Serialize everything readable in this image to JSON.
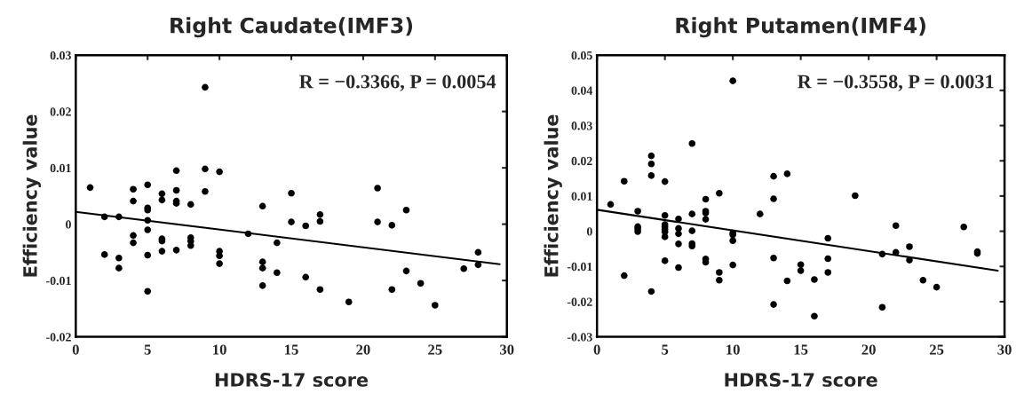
{
  "chart_data": [
    {
      "type": "scatter",
      "title": "Right Caudate(IMF3)",
      "xlabel": "HDRS-17 score",
      "ylabel": "Efficiency value",
      "annotations": [
        "R = −0.3366, P = 0.0054"
      ],
      "xlim": [
        0,
        30
      ],
      "xticks": [
        0,
        5,
        10,
        15,
        20,
        25,
        30
      ],
      "ylim": [
        -0.02,
        0.03
      ],
      "yticks": [
        -0.02,
        -0.01,
        0,
        0.01,
        0.02,
        0.03
      ],
      "grid": false,
      "legend": false,
      "marker": "circle",
      "series": [
        {
          "color": "#000000",
          "x": [
            1,
            2,
            2,
            3,
            3,
            3,
            4,
            4,
            4,
            4,
            5,
            5,
            5,
            5,
            5,
            5,
            5,
            6,
            6,
            6,
            6,
            6,
            7,
            7,
            7,
            7,
            7,
            8,
            8,
            8,
            8,
            9,
            9,
            9,
            10,
            10,
            10,
            10,
            12,
            13,
            13,
            13,
            13,
            14,
            14,
            15,
            15,
            16,
            16,
            17,
            17,
            17,
            19,
            21,
            21,
            22,
            22,
            23,
            23,
            24,
            25,
            27,
            28,
            28
          ],
          "values": [
            0.0065,
            0.0013,
            -0.0054,
            0.0013,
            -0.006,
            -0.0078,
            0.0062,
            0.0041,
            -0.002,
            -0.0033,
            0.007,
            0.0029,
            0.0025,
            0.0007,
            -0.001,
            -0.0055,
            -0.0119,
            0.0054,
            0.0043,
            -0.0026,
            -0.003,
            -0.0048,
            0.0095,
            0.006,
            0.0041,
            0.0037,
            -0.0046,
            0.0035,
            -0.0024,
            -0.003,
            -0.0038,
            0.0243,
            0.0098,
            0.0058,
            0.0093,
            -0.0048,
            -0.0056,
            -0.007,
            -0.0017,
            0.0032,
            -0.0067,
            -0.0078,
            -0.0109,
            -0.0033,
            -0.0086,
            0.0055,
            0.0004,
            -0.0003,
            -0.0094,
            0.0017,
            0.0005,
            -0.0116,
            -0.0138,
            0.0064,
            0.0004,
            -0.0002,
            -0.0116,
            0.0025,
            -0.0083,
            -0.0105,
            -0.0144,
            -0.0079,
            -0.005,
            -0.0072
          ]
        },
        {
          "type": "line",
          "color": "#000000",
          "marker": "none",
          "x": [
            0,
            29.5
          ],
          "values": [
            0.0022,
            -0.0071
          ]
        }
      ]
    },
    {
      "type": "scatter",
      "title": "Right Putamen(IMF4)",
      "xlabel": "HDRS-17 score",
      "ylabel": "Efficiency value",
      "annotations": [
        "R = −0.3558, P = 0.0031"
      ],
      "xlim": [
        0,
        30
      ],
      "xticks": [
        0,
        5,
        10,
        15,
        20,
        25,
        30
      ],
      "ylim": [
        -0.03,
        0.05
      ],
      "yticks": [
        -0.03,
        -0.02,
        -0.01,
        0,
        0.01,
        0.02,
        0.03,
        0.04,
        0.05
      ],
      "grid": false,
      "legend": false,
      "marker": "circle",
      "series": [
        {
          "color": "#000000",
          "x": [
            1,
            2,
            2,
            3,
            3,
            3,
            3,
            4,
            4,
            4,
            4,
            5,
            5,
            5,
            5,
            5,
            5,
            5,
            5,
            6,
            6,
            6,
            6,
            6,
            7,
            7,
            7,
            7,
            7,
            8,
            8,
            8,
            8,
            8,
            8,
            9,
            9,
            9,
            10,
            10,
            10,
            10,
            10,
            12,
            13,
            13,
            13,
            13,
            14,
            14,
            15,
            15,
            16,
            16,
            17,
            17,
            17,
            19,
            21,
            21,
            22,
            22,
            23,
            23,
            24,
            25,
            27,
            28,
            28
          ],
          "values": [
            0.0076,
            0.0142,
            -0.0126,
            0.0057,
            0.0013,
            0.0007,
            -0.0001,
            0.0214,
            0.0191,
            0.0158,
            -0.0171,
            0.0141,
            0.0045,
            0.0019,
            0.0012,
            0.0005,
            -0.0002,
            -0.0016,
            -0.0084,
            0.0035,
            0.0008,
            -0.0007,
            -0.0036,
            -0.0103,
            0.0249,
            0.0049,
            0.0001,
            -0.0035,
            -0.0042,
            0.0091,
            0.0057,
            0.0052,
            0.0034,
            -0.0079,
            -0.0088,
            0.0108,
            -0.0117,
            -0.0139,
            0.0427,
            -0.0005,
            -0.001,
            -0.0027,
            -0.0096,
            0.0049,
            0.0156,
            0.0092,
            -0.0076,
            -0.0208,
            0.0163,
            -0.0141,
            -0.0095,
            -0.0112,
            -0.0137,
            -0.0241,
            -0.002,
            -0.0078,
            -0.0117,
            0.0101,
            -0.0065,
            -0.0216,
            0.0016,
            -0.006,
            -0.0044,
            -0.0082,
            -0.0139,
            -0.0159,
            0.0012,
            -0.0058,
            -0.0063
          ]
        },
        {
          "type": "line",
          "color": "#000000",
          "marker": "none",
          "x": [
            0,
            29.5
          ],
          "values": [
            0.0061,
            -0.0112
          ]
        }
      ]
    }
  ]
}
